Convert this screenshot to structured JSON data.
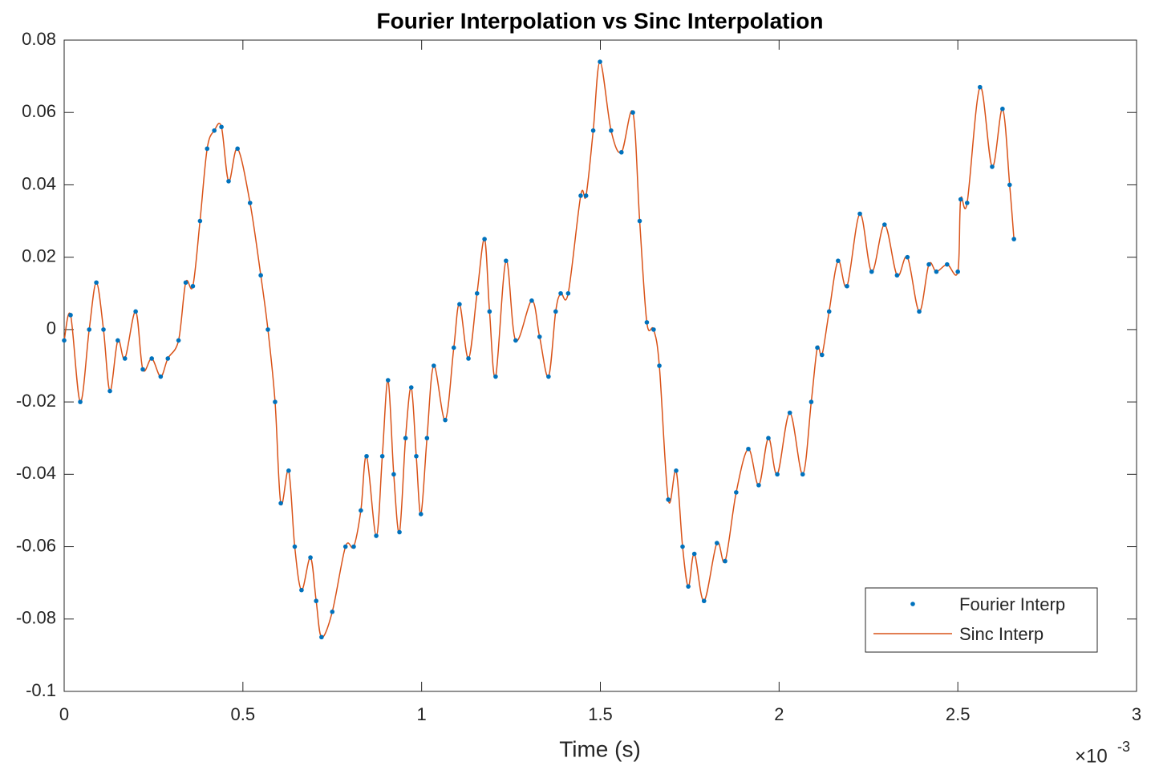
{
  "chart_data": {
    "type": "line",
    "title": "Fourier Interpolation vs Sinc Interpolation",
    "x_label": "Time (s)",
    "x_multiplier": {
      "base": "×10",
      "exponent": "-3"
    },
    "x": [
      0,
      0.018,
      0.045,
      0.07,
      0.09,
      0.11,
      0.128,
      0.15,
      0.17,
      0.2,
      0.22,
      0.245,
      0.27,
      0.29,
      0.32,
      0.34,
      0.36,
      0.38,
      0.4,
      0.42,
      0.44,
      0.46,
      0.485,
      0.52,
      0.55,
      0.57,
      0.59,
      0.606,
      0.628,
      0.645,
      0.664,
      0.689,
      0.705,
      0.72,
      0.75,
      0.787,
      0.81,
      0.83,
      0.846,
      0.873,
      0.89,
      0.906,
      0.922,
      0.938,
      0.955,
      0.971,
      0.985,
      0.998,
      1.015,
      1.034,
      1.066,
      1.09,
      1.106,
      1.131,
      1.155,
      1.176,
      1.19,
      1.207,
      1.236,
      1.263,
      1.308,
      1.33,
      1.355,
      1.375,
      1.389,
      1.41,
      1.445,
      1.46,
      1.48,
      1.499,
      1.53,
      1.559,
      1.591,
      1.61,
      1.63,
      1.649,
      1.665,
      1.69,
      1.712,
      1.73,
      1.746,
      1.763,
      1.79,
      1.826,
      1.849,
      1.88,
      1.914,
      1.943,
      1.97,
      1.995,
      2.03,
      2.066,
      2.09,
      2.107,
      2.12,
      2.14,
      2.165,
      2.19,
      2.226,
      2.259,
      2.295,
      2.33,
      2.359,
      2.392,
      2.419,
      2.44,
      2.47,
      2.5,
      2.508,
      2.526,
      2.562,
      2.596,
      2.625,
      2.645,
      2.657
    ],
    "series": [
      {
        "name": "Fourier Interp",
        "color": "#0072bd",
        "style": "dots",
        "values": [
          -0.003,
          0.004,
          -0.02,
          0.0,
          0.013,
          0.0,
          -0.017,
          -0.003,
          -0.008,
          0.005,
          -0.011,
          -0.008,
          -0.013,
          -0.008,
          -0.003,
          0.013,
          0.012,
          0.03,
          0.05,
          0.055,
          0.056,
          0.041,
          0.05,
          0.035,
          0.015,
          0.0,
          -0.02,
          -0.048,
          -0.039,
          -0.06,
          -0.072,
          -0.063,
          -0.075,
          -0.085,
          -0.078,
          -0.06,
          -0.06,
          -0.05,
          -0.035,
          -0.057,
          -0.035,
          -0.014,
          -0.04,
          -0.056,
          -0.03,
          -0.016,
          -0.035,
          -0.051,
          -0.03,
          -0.01,
          -0.025,
          -0.005,
          0.007,
          -0.008,
          0.01,
          0.025,
          0.005,
          -0.013,
          0.019,
          -0.003,
          0.008,
          -0.002,
          -0.013,
          0.005,
          0.01,
          0.01,
          0.037,
          0.037,
          0.055,
          0.074,
          0.055,
          0.049,
          0.06,
          0.03,
          0.002,
          0.0,
          -0.01,
          -0.047,
          -0.039,
          -0.06,
          -0.071,
          -0.062,
          -0.075,
          -0.059,
          -0.064,
          -0.045,
          -0.033,
          -0.043,
          -0.03,
          -0.04,
          -0.023,
          -0.04,
          -0.02,
          -0.005,
          -0.007,
          0.005,
          0.019,
          0.012,
          0.032,
          0.016,
          0.029,
          0.015,
          0.02,
          0.005,
          0.018,
          0.016,
          0.018,
          0.016,
          0.036,
          0.035,
          0.067,
          0.045,
          0.061,
          0.04,
          0.025
        ]
      },
      {
        "name": "Sinc Interp",
        "color": "#d95319",
        "style": "line",
        "values": [
          -0.003,
          0.004,
          -0.02,
          0.0,
          0.013,
          0.0,
          -0.017,
          -0.003,
          -0.008,
          0.005,
          -0.011,
          -0.008,
          -0.013,
          -0.008,
          -0.003,
          0.013,
          0.012,
          0.03,
          0.05,
          0.055,
          0.056,
          0.041,
          0.05,
          0.035,
          0.015,
          0.0,
          -0.02,
          -0.048,
          -0.039,
          -0.06,
          -0.072,
          -0.063,
          -0.075,
          -0.085,
          -0.078,
          -0.06,
          -0.06,
          -0.05,
          -0.035,
          -0.057,
          -0.035,
          -0.014,
          -0.04,
          -0.056,
          -0.03,
          -0.016,
          -0.035,
          -0.051,
          -0.03,
          -0.01,
          -0.025,
          -0.005,
          0.007,
          -0.008,
          0.01,
          0.025,
          0.005,
          -0.013,
          0.019,
          -0.003,
          0.008,
          -0.002,
          -0.013,
          0.005,
          0.01,
          0.01,
          0.037,
          0.037,
          0.055,
          0.074,
          0.055,
          0.049,
          0.06,
          0.03,
          0.002,
          0.0,
          -0.01,
          -0.047,
          -0.039,
          -0.06,
          -0.071,
          -0.062,
          -0.075,
          -0.059,
          -0.064,
          -0.045,
          -0.033,
          -0.043,
          -0.03,
          -0.04,
          -0.023,
          -0.04,
          -0.02,
          -0.005,
          -0.007,
          0.005,
          0.019,
          0.012,
          0.032,
          0.016,
          0.029,
          0.015,
          0.02,
          0.005,
          0.018,
          0.016,
          0.018,
          0.016,
          0.036,
          0.035,
          0.067,
          0.045,
          0.061,
          0.04,
          0.025
        ]
      }
    ],
    "xlim": [
      0,
      3
    ],
    "xticks": [
      0,
      0.5,
      1,
      1.5,
      2,
      2.5,
      3
    ],
    "ylim": [
      -0.1,
      0.08
    ],
    "yticks": [
      -0.1,
      -0.08,
      -0.06,
      -0.04,
      -0.02,
      0,
      0.02,
      0.04,
      0.06,
      0.08
    ],
    "legend": "lower right"
  }
}
